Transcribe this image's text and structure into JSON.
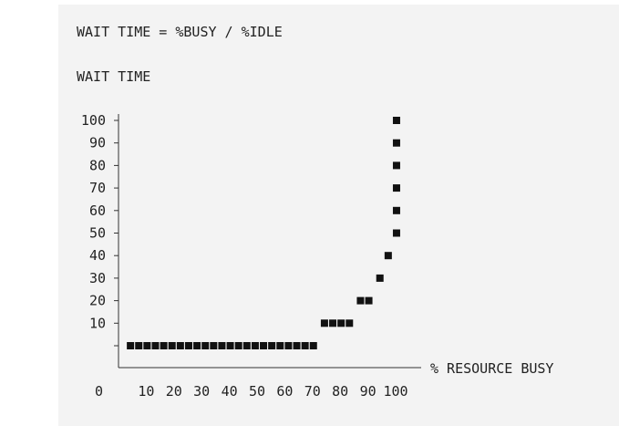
{
  "formula": "WAIT TIME = %BUSY / %IDLE",
  "chart_data": {
    "type": "scatter",
    "title": "WAIT TIME = %BUSY / %IDLE",
    "ylabel": "WAIT TIME",
    "xlabel": "% RESOURCE BUSY",
    "x_origin_label": "0",
    "xlim": [
      0,
      100
    ],
    "ylim": [
      0,
      100
    ],
    "x_ticks": [
      "10",
      "20",
      "30",
      "40",
      "50",
      "60",
      "70",
      "80",
      "90",
      "100"
    ],
    "y_ticks": [
      "10",
      "20",
      "30",
      "40",
      "50",
      "60",
      "70",
      "80",
      "90",
      "100"
    ],
    "grid": false,
    "points": [
      {
        "x": 3,
        "y": 0
      },
      {
        "x": 6,
        "y": 0
      },
      {
        "x": 9,
        "y": 0
      },
      {
        "x": 12,
        "y": 0
      },
      {
        "x": 15,
        "y": 0
      },
      {
        "x": 18,
        "y": 0
      },
      {
        "x": 21,
        "y": 0
      },
      {
        "x": 24,
        "y": 0
      },
      {
        "x": 27,
        "y": 0
      },
      {
        "x": 30,
        "y": 0
      },
      {
        "x": 33,
        "y": 0
      },
      {
        "x": 36,
        "y": 0
      },
      {
        "x": 39,
        "y": 0
      },
      {
        "x": 42,
        "y": 0
      },
      {
        "x": 45,
        "y": 0
      },
      {
        "x": 48,
        "y": 0
      },
      {
        "x": 51,
        "y": 0
      },
      {
        "x": 54,
        "y": 0
      },
      {
        "x": 57,
        "y": 0
      },
      {
        "x": 60,
        "y": 0
      },
      {
        "x": 63,
        "y": 0
      },
      {
        "x": 66,
        "y": 0
      },
      {
        "x": 69,
        "y": 0
      },
      {
        "x": 73,
        "y": 10
      },
      {
        "x": 76,
        "y": 10
      },
      {
        "x": 79,
        "y": 10
      },
      {
        "x": 82,
        "y": 10
      },
      {
        "x": 86,
        "y": 20
      },
      {
        "x": 89,
        "y": 20
      },
      {
        "x": 93,
        "y": 30
      },
      {
        "x": 96,
        "y": 40
      },
      {
        "x": 99,
        "y": 50
      },
      {
        "x": 99,
        "y": 60
      },
      {
        "x": 99,
        "y": 70
      },
      {
        "x": 99,
        "y": 80
      },
      {
        "x": 99,
        "y": 90
      },
      {
        "x": 99,
        "y": 100
      }
    ]
  }
}
